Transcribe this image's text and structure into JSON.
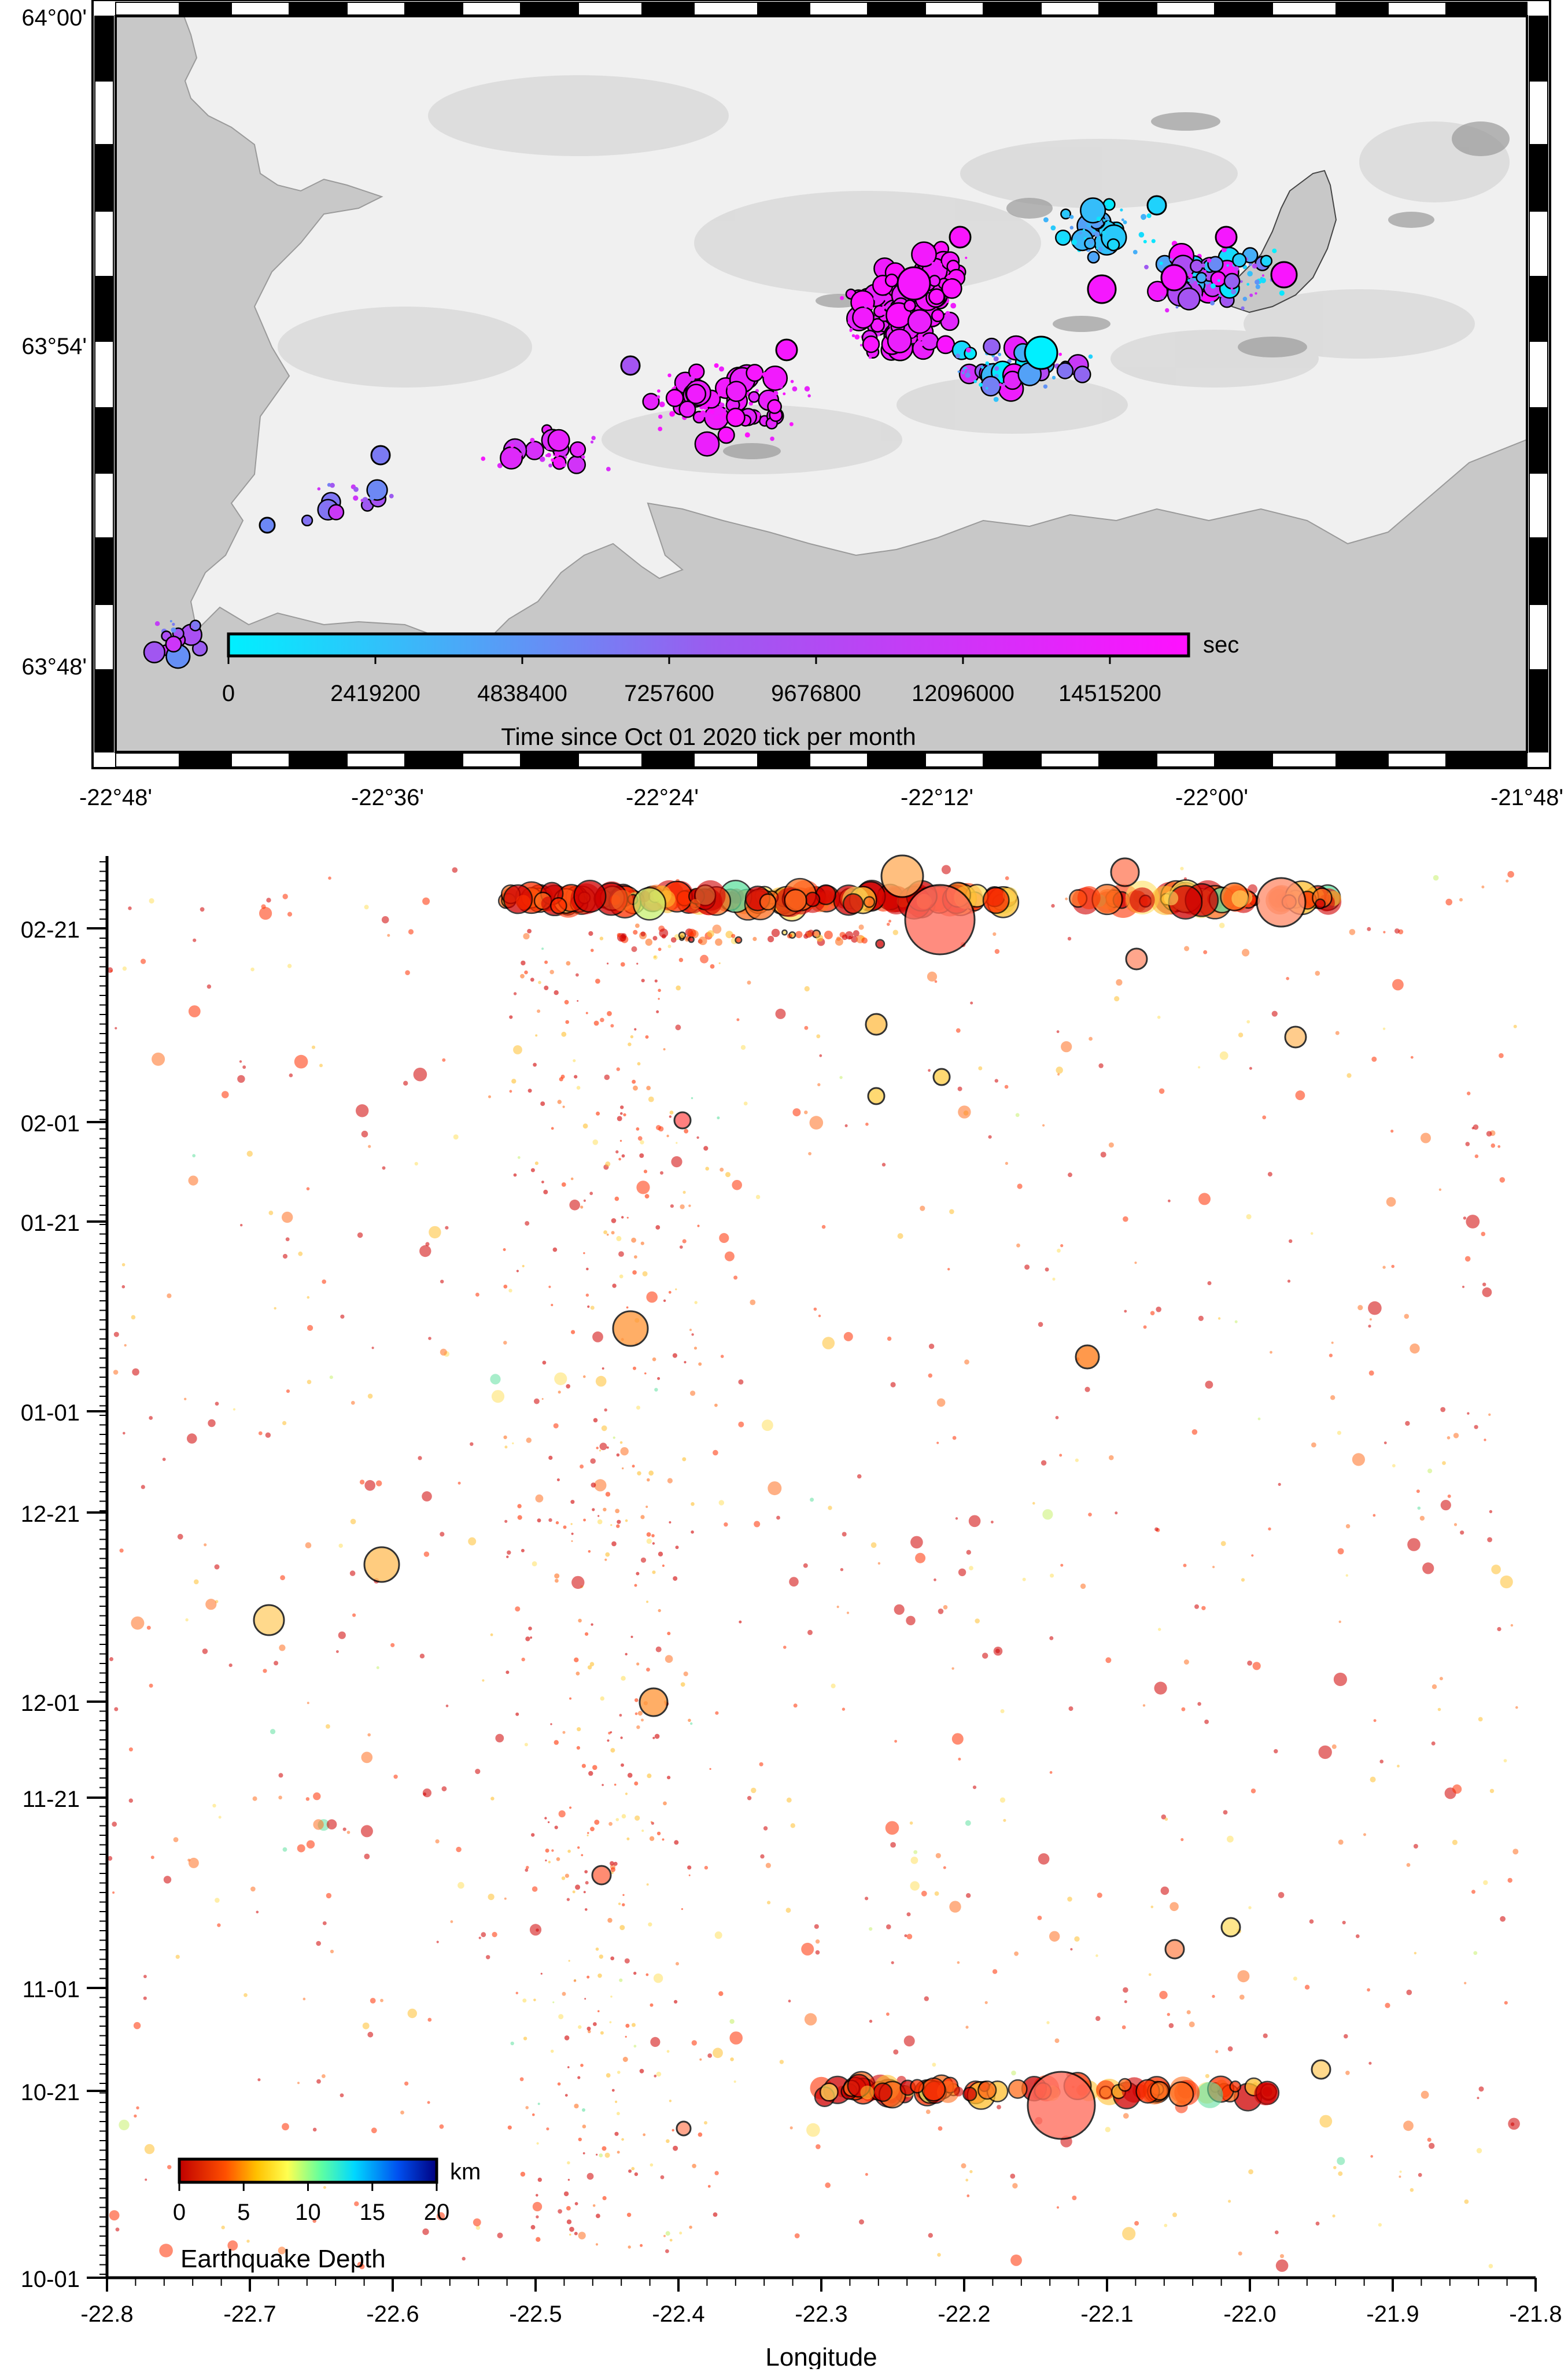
{
  "map": {
    "lat_labels": [
      "64°00'",
      "63°54'",
      "63°48'"
    ],
    "lon_labels": [
      "-22°48'",
      "-22°36'",
      "-22°24'",
      "-22°12'",
      "-22°00'",
      "-21°48'"
    ],
    "land_color": "#f2f2f2",
    "sea_color": "#c8c8c8",
    "colorbar": {
      "unit": "sec",
      "ticks": [
        "0",
        "2419200",
        "4838400",
        "7257600",
        "9676800",
        "12096000",
        "14515200"
      ],
      "title": "Time since Oct 01 2020 tick per month",
      "color_start": "#00f0ff",
      "color_end": "#ff10ff"
    }
  },
  "timeline": {
    "y_labels": [
      "02-21",
      "02-01",
      "01-21",
      "01-01",
      "12-21",
      "12-01",
      "11-21",
      "11-01",
      "10-21",
      "10-01"
    ],
    "x_labels": [
      "-22.8",
      "-22.7",
      "-22.6",
      "-22.5",
      "-22.4",
      "-22.3",
      "-22.2",
      "-22.1",
      "-22.0",
      "-21.9",
      "-21.8"
    ],
    "xlabel": "Longitude",
    "xlim": [
      -22.8,
      -21.8
    ],
    "colorbar": {
      "unit": "km",
      "ticks": [
        "0",
        "5",
        "10",
        "15",
        "20"
      ],
      "title": "Earthquake Depth",
      "range": [
        0,
        20
      ],
      "colors": [
        "#c00000",
        "#ff4000",
        "#ffc000",
        "#ffff40",
        "#60ffa0",
        "#00e0ff",
        "#0060ff",
        "#000090"
      ]
    }
  }
}
